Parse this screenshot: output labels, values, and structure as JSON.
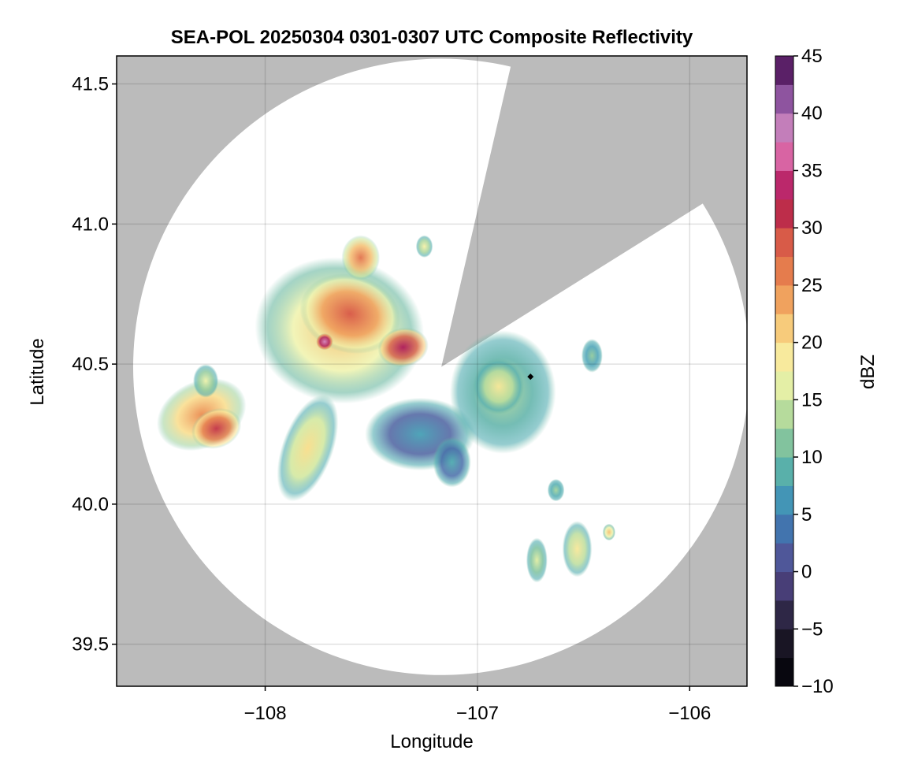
{
  "chart_data": {
    "type": "heatmap",
    "title": "SEA-POL 20250304 0301-0307 UTC Composite Reflectivity",
    "xlabel": "Longitude",
    "ylabel": "Latitude",
    "xlim": [
      -108.7,
      -105.73
    ],
    "ylim": [
      39.35,
      41.6
    ],
    "xticks": [
      -108,
      -107,
      -106
    ],
    "xtick_labels": [
      "−108",
      "−107",
      "−106"
    ],
    "yticks": [
      39.5,
      40.0,
      40.5,
      41.0,
      41.5
    ],
    "ytick_labels": [
      "39.5",
      "40.0",
      "40.5",
      "41.0",
      "41.5"
    ],
    "grid": true,
    "radar": {
      "lon": -107.17,
      "lat": 40.49,
      "range_deg_lat": 1.1,
      "blocked_sector_bearing_deg": [
        13,
        58
      ],
      "outside_color": "#bbbbbb",
      "coverage_color": "#ffffff"
    },
    "marker": {
      "lon": -106.75,
      "lat": 40.455,
      "label": ""
    },
    "colorbar": {
      "label": "dBZ",
      "min": -10,
      "max": 45,
      "ticks": [
        -10,
        -5,
        0,
        5,
        10,
        15,
        20,
        25,
        30,
        35,
        40,
        45
      ],
      "tick_labels": [
        "−10",
        "−5",
        "0",
        "5",
        "10",
        "15",
        "20",
        "25",
        "30",
        "35",
        "40",
        "45"
      ],
      "stops": [
        {
          "v": -10,
          "c": "#000004"
        },
        {
          "v": -5,
          "c": "#211c2e"
        },
        {
          "v": 0,
          "c": "#55498f"
        },
        {
          "v": 5,
          "c": "#3c82b8"
        },
        {
          "v": 7.5,
          "c": "#49a8b4"
        },
        {
          "v": 10,
          "c": "#68b79f"
        },
        {
          "v": 15,
          "c": "#d0e79b"
        },
        {
          "v": 17.5,
          "c": "#f7f6b0"
        },
        {
          "v": 20,
          "c": "#f9dd8a"
        },
        {
          "v": 22.5,
          "c": "#f4b86b"
        },
        {
          "v": 25,
          "c": "#eb8c50"
        },
        {
          "v": 30,
          "c": "#d24a45"
        },
        {
          "v": 32.5,
          "c": "#a8104f"
        },
        {
          "v": 35,
          "c": "#cd3f86"
        },
        {
          "v": 37.5,
          "c": "#e288bf"
        },
        {
          "v": 40,
          "c": "#a473b4"
        },
        {
          "v": 42.5,
          "c": "#77358a"
        },
        {
          "v": 45,
          "c": "#3c0a44"
        }
      ]
    },
    "echo_cells": [
      {
        "name": "western-storm-band",
        "lon": -108.3,
        "lat": 40.32,
        "rx": 0.22,
        "ry": 0.12,
        "dbz": 25,
        "rot": -25
      },
      {
        "name": "western-storm-core",
        "lon": -108.23,
        "lat": 40.27,
        "rx": 0.12,
        "ry": 0.07,
        "dbz": 31,
        "rot": -20
      },
      {
        "name": "western-storm-edge",
        "lon": -108.28,
        "lat": 40.44,
        "rx": 0.06,
        "ry": 0.06,
        "dbz": 17,
        "rot": 0
      },
      {
        "name": "northern-complex",
        "lon": -107.65,
        "lat": 40.62,
        "rx": 0.4,
        "ry": 0.26,
        "dbz": 22,
        "rot": 10
      },
      {
        "name": "northern-core-1",
        "lon": -107.6,
        "lat": 40.68,
        "rx": 0.24,
        "ry": 0.14,
        "dbz": 29,
        "rot": 15
      },
      {
        "name": "northern-core-2",
        "lon": -107.35,
        "lat": 40.56,
        "rx": 0.12,
        "ry": 0.07,
        "dbz": 33,
        "rot": -10
      },
      {
        "name": "northern-peak",
        "lon": -107.72,
        "lat": 40.58,
        "rx": 0.04,
        "ry": 0.03,
        "dbz": 38,
        "rot": 0
      },
      {
        "name": "northern-tip",
        "lon": -107.55,
        "lat": 40.88,
        "rx": 0.09,
        "ry": 0.08,
        "dbz": 27,
        "rot": 0
      },
      {
        "name": "ne-fragment",
        "lon": -107.25,
        "lat": 40.92,
        "rx": 0.04,
        "ry": 0.04,
        "dbz": 18,
        "rot": 0
      },
      {
        "name": "southwest-spur",
        "lon": -107.8,
        "lat": 40.2,
        "rx": 0.12,
        "ry": 0.2,
        "dbz": 20,
        "rot": 20
      },
      {
        "name": "central-weak-echo",
        "lon": -107.27,
        "lat": 40.25,
        "rx": 0.26,
        "ry": 0.13,
        "dbz": 7,
        "rot": 0
      },
      {
        "name": "central-weak-tail",
        "lon": -107.12,
        "lat": 40.15,
        "rx": 0.09,
        "ry": 0.09,
        "dbz": 8,
        "rot": 0
      },
      {
        "name": "eastern-cluster",
        "lon": -106.88,
        "lat": 40.4,
        "rx": 0.25,
        "ry": 0.22,
        "dbz": 14,
        "rot": 0
      },
      {
        "name": "eastern-core",
        "lon": -106.9,
        "lat": 40.42,
        "rx": 0.12,
        "ry": 0.1,
        "dbz": 19,
        "rot": 0
      },
      {
        "name": "east-north-fragment",
        "lon": -106.46,
        "lat": 40.53,
        "rx": 0.05,
        "ry": 0.06,
        "dbz": 12,
        "rot": 0
      },
      {
        "name": "southeast-cell-a",
        "lon": -106.53,
        "lat": 39.84,
        "rx": 0.07,
        "ry": 0.1,
        "dbz": 19,
        "rot": 0
      },
      {
        "name": "southeast-cell-b",
        "lon": -106.72,
        "lat": 39.8,
        "rx": 0.05,
        "ry": 0.08,
        "dbz": 16,
        "rot": 0
      },
      {
        "name": "southeast-cell-c",
        "lon": -106.38,
        "lat": 39.9,
        "rx": 0.03,
        "ry": 0.03,
        "dbz": 22,
        "rot": 0
      },
      {
        "name": "east-small-fragment",
        "lon": -106.63,
        "lat": 40.05,
        "rx": 0.04,
        "ry": 0.04,
        "dbz": 13,
        "rot": 0
      }
    ]
  }
}
